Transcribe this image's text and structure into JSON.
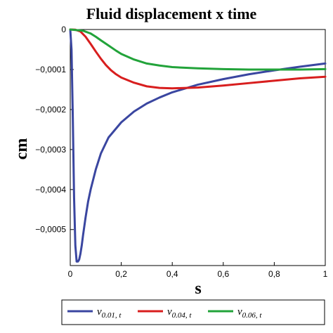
{
  "chart_data": {
    "type": "line",
    "title": "Fluid displacement x time",
    "xlabel": "s",
    "ylabel": "cm",
    "xlim": [
      0,
      1
    ],
    "ylim": [
      -0.00059,
      0
    ],
    "grid": false,
    "legend_position": "bottom",
    "x_ticks": [
      {
        "value": 0,
        "label": "0"
      },
      {
        "value": 0.2,
        "label": "0,2"
      },
      {
        "value": 0.4,
        "label": "0,4"
      },
      {
        "value": 0.6,
        "label": "0,6"
      },
      {
        "value": 0.8,
        "label": "0,8"
      },
      {
        "value": 1,
        "label": "1"
      }
    ],
    "y_ticks": [
      {
        "value": 0,
        "label": "0"
      },
      {
        "value": -0.0001,
        "label": "−0,0001"
      },
      {
        "value": -0.0002,
        "label": "−0,0002"
      },
      {
        "value": -0.0003,
        "label": "−0,0003"
      },
      {
        "value": -0.0004,
        "label": "−0,0004"
      },
      {
        "value": -0.0005,
        "label": "−0,0005"
      }
    ],
    "series": [
      {
        "name": "v",
        "sub": "0.01, t",
        "color": "#3a46a0",
        "x": [
          0,
          0.005,
          0.01,
          0.015,
          0.02,
          0.025,
          0.03,
          0.035,
          0.04,
          0.045,
          0.05,
          0.06,
          0.07,
          0.08,
          0.1,
          0.12,
          0.15,
          0.2,
          0.25,
          0.3,
          0.35,
          0.4,
          0.5,
          0.6,
          0.7,
          0.8,
          0.9,
          1.0
        ],
        "y": [
          0,
          -5e-05,
          -0.00022,
          -0.00042,
          -0.00054,
          -0.00058,
          -0.00058,
          -0.000575,
          -0.00056,
          -0.00054,
          -0.000515,
          -0.00047,
          -0.00043,
          -0.0004,
          -0.00035,
          -0.00031,
          -0.00027,
          -0.000232,
          -0.000205,
          -0.000185,
          -0.00017,
          -0.000157,
          -0.000138,
          -0.000124,
          -0.000112,
          -0.000102,
          -9.3e-05,
          -8.5e-05
        ]
      },
      {
        "name": "v",
        "sub": "0.04, t",
        "color": "#d81e1e",
        "x": [
          0,
          0.02,
          0.04,
          0.06,
          0.08,
          0.1,
          0.12,
          0.14,
          0.16,
          0.18,
          0.2,
          0.25,
          0.3,
          0.35,
          0.4,
          0.5,
          0.6,
          0.7,
          0.8,
          0.9,
          1.0
        ],
        "y": [
          0,
          -5e-07,
          -5e-06,
          -1.8e-05,
          -3.6e-05,
          -5.5e-05,
          -7.3e-05,
          -8.9e-05,
          -0.000102,
          -0.000112,
          -0.00012,
          -0.000133,
          -0.000142,
          -0.000146,
          -0.000147,
          -0.000145,
          -0.00014,
          -0.000134,
          -0.000128,
          -0.000122,
          -0.000118
        ]
      },
      {
        "name": "v",
        "sub": "0.06, t",
        "color": "#22a33a",
        "x": [
          0,
          0.05,
          0.08,
          0.1,
          0.12,
          0.15,
          0.18,
          0.2,
          0.25,
          0.3,
          0.35,
          0.4,
          0.5,
          0.6,
          0.7,
          0.8,
          0.9,
          1.0
        ],
        "y": [
          0,
          -3e-06,
          -1e-05,
          -1.8e-05,
          -2.7e-05,
          -4e-05,
          -5.3e-05,
          -6.1e-05,
          -7.5e-05,
          -8.5e-05,
          -9e-05,
          -9.4e-05,
          -9.7e-05,
          -9.9e-05,
          -0.0001,
          -0.0001,
          -0.0001,
          -9.9e-05
        ]
      }
    ]
  }
}
